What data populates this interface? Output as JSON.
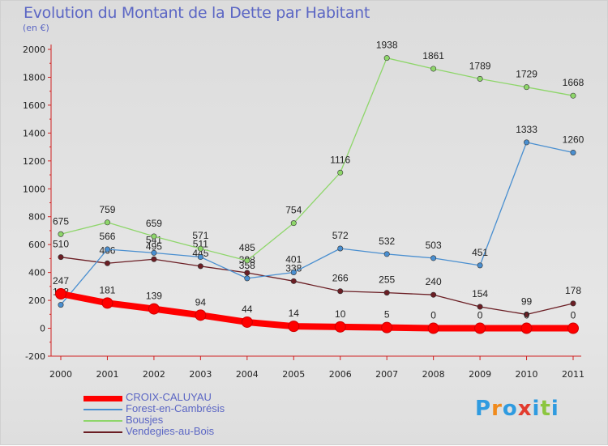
{
  "header": {
    "title": "Evolution du Montant de la Dette par Habitant",
    "unit": "(en €)"
  },
  "logo": {
    "text": "Proxiti",
    "colors": [
      "#2f9be0",
      "#f08a1c",
      "#2f9be0",
      "#e23b2e",
      "#2f9be0",
      "#8cc63f",
      "#2f9be0"
    ]
  },
  "chart_data": {
    "type": "line",
    "title": "Evolution du Montant de la Dette par Habitant",
    "subtitle": "(en €)",
    "x": [
      "2000",
      "2001",
      "2002",
      "2003",
      "2004",
      "2005",
      "2006",
      "2007",
      "2008",
      "2009",
      "2010",
      "2011"
    ],
    "y_ticks": [
      "2000",
      "1800",
      "1600",
      "1400",
      "1200",
      "1000",
      "800",
      "600",
      "400",
      "200",
      "0",
      "-200"
    ],
    "ylim": [
      -200,
      2000
    ],
    "grid": false,
    "legend_position": "bottom-left",
    "series": [
      {
        "name": "Vendegies-au-Bois",
        "color": "#6b1e24",
        "values": [
          510,
          466,
          495,
          445,
          398,
          338,
          266,
          255,
          240,
          154,
          99,
          178
        ],
        "labels": [
          "510",
          "466",
          "495",
          "445",
          "398",
          "338",
          "266",
          "255",
          "240",
          "154",
          "99",
          "178"
        ]
      },
      {
        "name": "Forest-en-Cambrésis",
        "color": "#4a8fd0",
        "values": [
          168,
          566,
          541,
          511,
          358,
          401,
          572,
          532,
          503,
          451,
          1333,
          1260
        ],
        "labels": [
          "168",
          "566",
          "541",
          "511",
          "358",
          "401",
          "572",
          "532",
          "503",
          "451",
          "1333",
          "1260"
        ]
      },
      {
        "name": "Bousjes",
        "color": "#8ed66a",
        "values": [
          675,
          759,
          659,
          571,
          485,
          754,
          1116,
          1938,
          1861,
          1789,
          1729,
          1668
        ],
        "labels": [
          "675",
          "759",
          "659",
          "571",
          "485",
          "754",
          "1116",
          "1938",
          "1861",
          "1789",
          "1729",
          "1668"
        ]
      },
      {
        "name": "CROIX-CALUYAU",
        "color": "#ff0000",
        "values": [
          247,
          181,
          139,
          94,
          44,
          14,
          10,
          5,
          0,
          0,
          0,
          0
        ],
        "labels": [
          "247",
          "181",
          "139",
          "94",
          "44",
          "14",
          "10",
          "5",
          "0",
          "0",
          "0",
          "0"
        ]
      }
    ],
    "legend": [
      {
        "name": "CROIX-CALUYAU",
        "color": "#ff0000"
      },
      {
        "name": "Forest-en-Cambrésis",
        "color": "#4a8fd0"
      },
      {
        "name": "Bousjes",
        "color": "#8ed66a"
      },
      {
        "name": "Vendegies-au-Bois",
        "color": "#6b1e24"
      }
    ]
  }
}
